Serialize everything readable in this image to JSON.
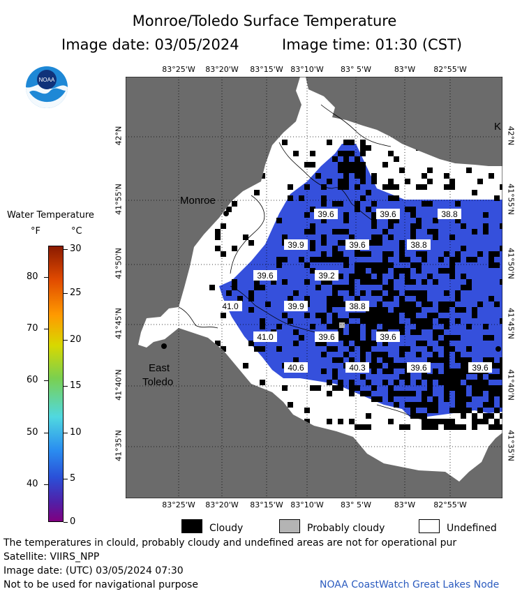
{
  "header": {
    "title": "Monroe/Toledo Surface Temperature",
    "image_date": "Image date: 03/05/2024",
    "image_time": "Image time: 01:30 (CST)"
  },
  "logo": {
    "text": "NOAA"
  },
  "map": {
    "top_lon_labels": [
      "83°25'W",
      "83°20'W",
      "83°15'W",
      "83°10'W",
      "83° 5'W",
      "83°W",
      "82°55'W"
    ],
    "bottom_lon_labels": [
      "83°25'W",
      "83°20'W",
      "83°15'W",
      "83°10'W",
      "83° 5'W",
      "83°W",
      "82°55'W"
    ],
    "left_lat_labels": [
      "42°N",
      "41°55'N",
      "41°50'N",
      "41°45'N",
      "41°40'N",
      "41°35'N"
    ],
    "right_lat_labels": [
      "42°N",
      "41°55'N",
      "41°50'N",
      "41°45'N",
      "41°40'N",
      "41°35'N"
    ],
    "places": {
      "monroe": "Monroe",
      "east": "East",
      "toledo": "Toledo",
      "k": "K"
    },
    "temp_labels": [
      "39.6",
      "39.6",
      "38.8",
      "39.9",
      "39.6",
      "38.8",
      "39.6",
      "39.2",
      "41.0",
      "39.9",
      "38.8",
      "41.0",
      "39.6",
      "39.6",
      "40.6",
      "40.3",
      "39.6",
      "39.6"
    ],
    "colors": {
      "land": "#6b6b6b",
      "water": "#3550dc",
      "cloud": "#000000",
      "undefined": "#ffffff",
      "probably_cloudy": "#b4b4b4"
    }
  },
  "colorbar": {
    "title": "Water Temperature",
    "unit_f": "°F",
    "unit_c": "°C",
    "f_ticks": [
      "80",
      "70",
      "60",
      "50",
      "40"
    ],
    "c_ticks": [
      "30",
      "25",
      "20",
      "15",
      "10",
      "5",
      "0"
    ]
  },
  "legend": {
    "cloudy": "Cloudy",
    "probably_cloudy": "Probably cloudy",
    "undefined": "Undefined"
  },
  "footer": {
    "disclaimer": "The temperatures in clould, probably cloudy and undefined areas are not for operational pur",
    "satellite": "Satellite: VIIRS_NPP",
    "date_utc": "Image date: (UTC) 03/05/2024  07:30",
    "navigation": "Not to be used for navigational purpose",
    "credit": "NOAA CoastWatch Great Lakes Node"
  }
}
